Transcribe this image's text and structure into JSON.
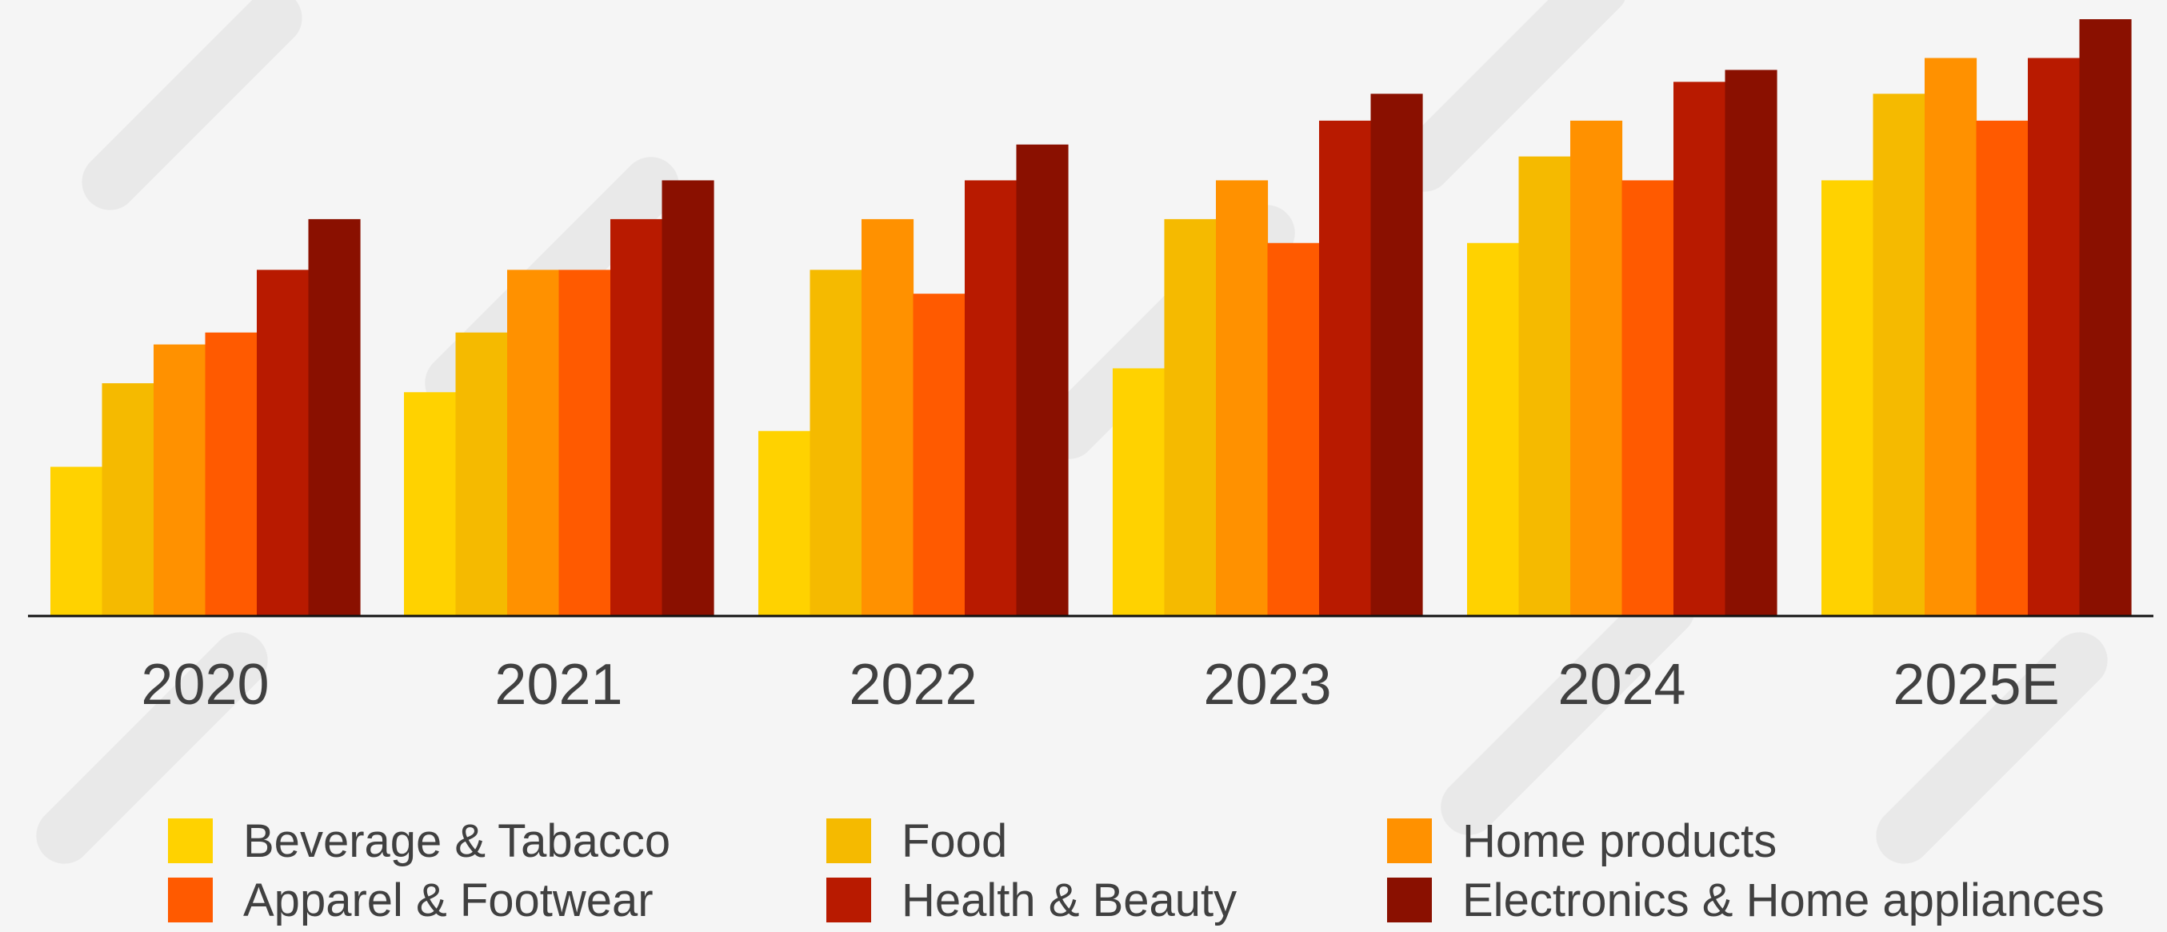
{
  "chart_data": {
    "type": "bar",
    "title": "",
    "xlabel": "",
    "ylabel": "",
    "categories": [
      "2020",
      "2021",
      "2022",
      "2023",
      "2024",
      "2025E"
    ],
    "ylim": [
      0,
      100
    ],
    "grid": false,
    "legend_position": "bottom",
    "series": [
      {
        "name": "Beverage & Tabacco",
        "color": "#FFD200",
        "values": [
          25,
          37.5,
          31,
          41.5,
          62.5,
          73
        ]
      },
      {
        "name": "Food",
        "color": "#F5BA00",
        "values": [
          39,
          47.5,
          58,
          66.5,
          77,
          87.5
        ]
      },
      {
        "name": "Home products",
        "color": "#FF9100",
        "values": [
          45.5,
          58,
          66.5,
          73,
          83,
          93.5
        ]
      },
      {
        "name": "Apparel & Footwear",
        "color": "#FF5A00",
        "values": [
          47.5,
          58,
          54,
          62.5,
          73,
          83
        ]
      },
      {
        "name": "Health & Beauty",
        "color": "#B81A00",
        "values": [
          58,
          66.5,
          73,
          83,
          89.5,
          93.5
        ]
      },
      {
        "name": "Electronics & Home appliances",
        "color": "#8A1000",
        "values": [
          66.5,
          73,
          79,
          87.5,
          91.5,
          100
        ]
      }
    ]
  }
}
